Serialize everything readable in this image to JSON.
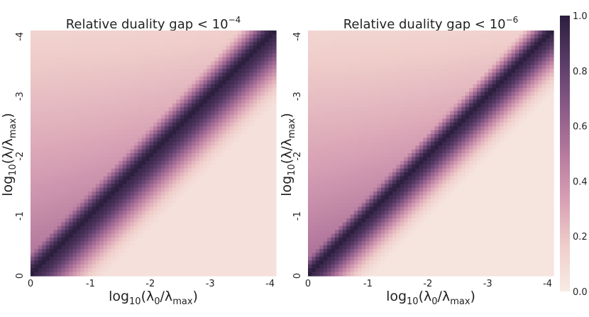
{
  "chart_data": [
    {
      "type": "heatmap",
      "title_prefix": "Relative duality gap < 10",
      "title_exponent": "−4",
      "xlabel_parts": [
        "log",
        "10",
        "(λ",
        "0",
        "/λ",
        "max",
        ")"
      ],
      "ylabel_parts": [
        "log",
        "10",
        "(λ/λ",
        "max",
        ")"
      ],
      "x_ticks": [
        "0",
        "-1",
        "-2",
        "-3",
        "-4"
      ],
      "y_ticks": [
        "0",
        "-1",
        "-2",
        "-3",
        "-4"
      ],
      "xlim": [
        0,
        -4.1
      ],
      "ylim": [
        0,
        -4.1
      ],
      "z_description": "normalized fraction, 1.0 along the diagonal λ0 = λ",
      "upper_left_plateau": 0.58,
      "upper_left_top_level": 0.1,
      "lower_right_level": 0.06,
      "diagonal_width": 0.32
    },
    {
      "type": "heatmap",
      "title_prefix": "Relative duality gap < 10",
      "title_exponent": "−6",
      "xlabel_parts": [
        "log",
        "10",
        "(λ",
        "0",
        "/λ",
        "max",
        ")"
      ],
      "ylabel_parts": [
        "log",
        "10",
        "(λ/λ",
        "max",
        ")"
      ],
      "x_ticks": [
        "0",
        "-1",
        "-2",
        "-3",
        "-4"
      ],
      "y_ticks": [
        "0",
        "-1",
        "-2",
        "-3",
        "-4"
      ],
      "xlim": [
        0,
        -4.1
      ],
      "ylim": [
        0,
        -4.1
      ],
      "z_description": "normalized fraction, 1.0 along the diagonal λ0 = λ",
      "upper_left_plateau": 0.6,
      "upper_left_top_level": 0.08,
      "lower_right_level": 0.04,
      "diagonal_width": 0.26
    }
  ],
  "colorbar": {
    "ticks": [
      "0.0",
      "0.2",
      "0.4",
      "0.6",
      "0.8",
      "1.0"
    ],
    "values": [
      0.0,
      0.2,
      0.4,
      0.6,
      0.8,
      1.0
    ],
    "colormap_stops": [
      "#f8ebe4",
      "#efcdca",
      "#d7a0b4",
      "#b57a9e",
      "#8a5a87",
      "#5a3c68",
      "#2c1e3d"
    ]
  }
}
